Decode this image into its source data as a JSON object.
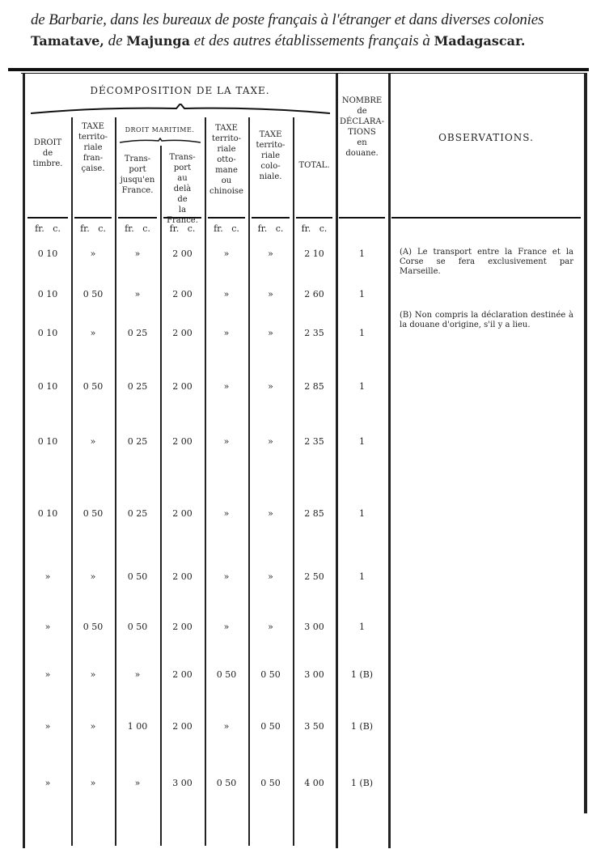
{
  "heading": {
    "line1": "de Barbarie, dans les bureaux de poste français à l'étranger et dans diverses colonies",
    "line2_a": "Tamatave,",
    "line2_b": " de ",
    "line2_c": "Majunga",
    "line2_d": " et des autres établissements français à ",
    "line2_e": "Madagascar."
  },
  "table": {
    "group_title": "DÉCOMPOSITION DE LA TAXE.",
    "maritime_title": "DROIT MARITIME.",
    "columns": [
      "DROIT de timbre.",
      "TAXE territo-riale fran-çaise.",
      "Trans-port jusqu'en France.",
      "Trans-port au delà de la France.",
      "TAXE territo-riale otto-mane ou chinoise",
      "TAXE territo-riale colo-niale.",
      "TOTAL.",
      "NOMBRE de DÉCLARA-TIONS en douane.",
      "OBSERVATIONS."
    ],
    "unit": "fr.   c.",
    "rows": [
      [
        "0 10",
        "»",
        "»",
        "2 00",
        "»",
        "»",
        "2 10",
        "1"
      ],
      [
        "0 10",
        "0 50",
        "»",
        "2 00",
        "»",
        "»",
        "2 60",
        "1"
      ],
      [
        "0 10",
        "»",
        "0 25",
        "2 00",
        "»",
        "»",
        "2 35",
        "1"
      ],
      [
        "0 10",
        "0 50",
        "0 25",
        "2 00",
        "»",
        "»",
        "2 85",
        "1"
      ],
      [
        "0 10",
        "»",
        "0 25",
        "2 00",
        "»",
        "»",
        "2 35",
        "1"
      ],
      [
        "0 10",
        "0 50",
        "0 25",
        "2 00",
        "»",
        "»",
        "2 85",
        "1"
      ],
      [
        "»",
        "»",
        "0 50",
        "2 00",
        "»",
        "»",
        "2 50",
        "1"
      ],
      [
        "»",
        "0 50",
        "0 50",
        "2 00",
        "»",
        "»",
        "3 00",
        "1"
      ],
      [
        "»",
        "»",
        "»",
        "2 00",
        "0 50",
        "0 50",
        "3 00",
        "1 (B)"
      ],
      [
        "»",
        "»",
        "1 00",
        "2 00",
        "»",
        "0 50",
        "3 50",
        "1 (B)"
      ],
      [
        "»",
        "»",
        "»",
        "3 00",
        "0 50",
        "0 50",
        "4 00",
        "1 (B)"
      ]
    ]
  },
  "observations": [
    "(A) Le transport entre la France et la Corse se fera exclusivement par Marseille.",
    "(B) Non compris la déclaration destinée à la douane d'origine, s'il y a lieu."
  ]
}
